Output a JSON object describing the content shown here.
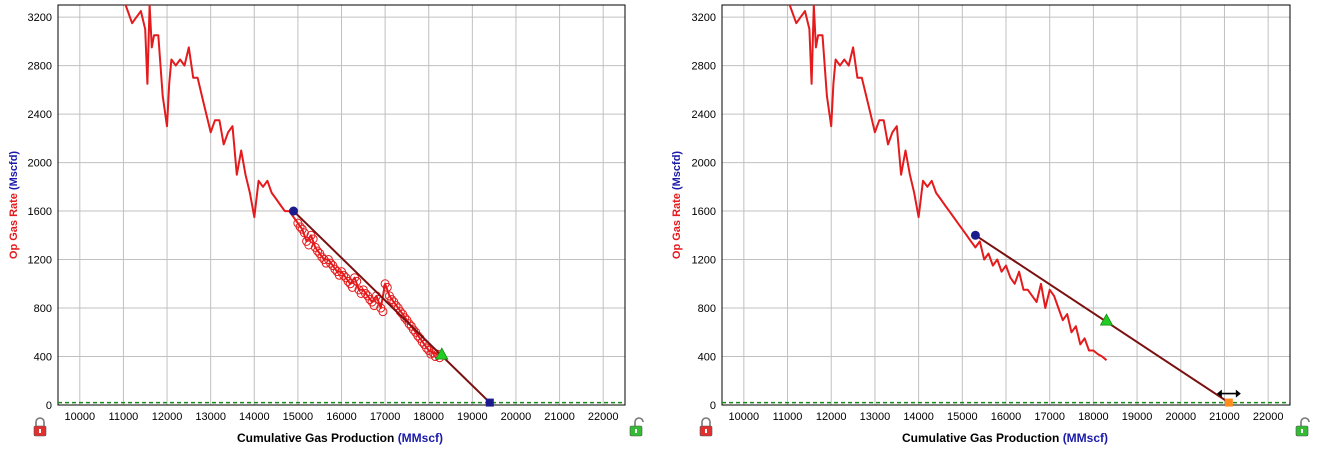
{
  "colors": {
    "data_line": "#e41a1c",
    "fit_line": "#7a1010",
    "grid": "#c0c0c0",
    "frame": "#000000",
    "y_label": "#e41a1c",
    "y_unit": "#1a1aaa",
    "x_unit": "#1a1aaa",
    "marker_start": "#1b1b8f",
    "marker_end_triangle": "#22cc22",
    "end_point_left": "#1b1b8f",
    "end_point_right": "#ff8c1a",
    "threshold": "#1a8a1a",
    "lock_red": "#e03030",
    "lock_green": "#33bb33"
  },
  "icons": [
    "lock-red-icon",
    "lock-green-icon",
    "double-arrow-icon"
  ],
  "chart_data": [
    {
      "type": "line",
      "xlabel": "Cumulative Gas Production",
      "xunit": "(MMscf)",
      "ylabel": "Op Gas Rate",
      "yunit": "(Mscfd)",
      "xlim": [
        9500,
        22500
      ],
      "ylim": [
        0,
        3300
      ],
      "xticks": [
        "10000",
        "11000",
        "12000",
        "13000",
        "14000",
        "15000",
        "16000",
        "17000",
        "18000",
        "19000",
        "20000",
        "21000",
        "22000"
      ],
      "yticks": [
        "0",
        "400",
        "800",
        "1200",
        "1600",
        "2000",
        "2400",
        "2800",
        "3200"
      ],
      "grid": true,
      "series": [
        {
          "x": [
            11000,
            11100,
            11200,
            11300,
            11400,
            11500,
            11550,
            11600,
            11650,
            11700,
            11800,
            11900,
            12000,
            12050,
            12100,
            12200,
            12300,
            12400,
            12500,
            12600,
            12700,
            12800,
            12900,
            13000,
            13100,
            13200,
            13300,
            13400,
            13500,
            13600,
            13700,
            13800,
            13900,
            14000,
            14100,
            14200,
            14300,
            14400,
            14500,
            14600,
            14700,
            14800,
            14900,
            15000,
            15100,
            15200,
            15300,
            15400,
            15500,
            15600,
            15700,
            15800,
            15900,
            16000,
            16100,
            16200,
            16300,
            16400,
            16500,
            16600,
            16700,
            16800,
            16900,
            17000,
            17100,
            17200,
            17300,
            17400,
            17500,
            17600,
            17700,
            17800,
            17900,
            18000,
            18100,
            18200,
            18300
          ],
          "y": [
            3350,
            3250,
            3150,
            3200,
            3250,
            3100,
            2650,
            3300,
            2950,
            3050,
            3050,
            2550,
            2300,
            2650,
            2850,
            2800,
            2850,
            2800,
            2950,
            2700,
            2700,
            2550,
            2400,
            2250,
            2350,
            2350,
            2150,
            2250,
            2300,
            1900,
            2100,
            1900,
            1750,
            1550,
            1850,
            1800,
            1850,
            1750,
            1700,
            1650,
            1600,
            1600,
            1550,
            1500,
            1450,
            1350,
            1400,
            1300,
            1250,
            1200,
            1200,
            1150,
            1100,
            1100,
            1050,
            1000,
            1050,
            950,
            950,
            900,
            850,
            900,
            800,
            1000,
            900,
            850,
            800,
            750,
            700,
            650,
            600,
            550,
            500,
            450,
            430,
            420,
            420
          ]
        },
        {
          "x": [
            14900,
            19400
          ],
          "y": [
            1600,
            20
          ]
        }
      ],
      "markers": {
        "start": [
          14900,
          1600
        ],
        "triangle": [
          18300,
          420
        ],
        "end": [
          19400,
          20
        ]
      },
      "circled_range": [
        15000,
        18200
      ],
      "threshold": 20
    },
    {
      "type": "line",
      "xlabel": "Cumulative Gas Production",
      "xunit": "(MMscf)",
      "ylabel": "Op Gas Rate",
      "yunit": "(Mscfd)",
      "xlim": [
        9500,
        22500
      ],
      "ylim": [
        0,
        3300
      ],
      "xticks": [
        "10000",
        "11000",
        "12000",
        "13000",
        "14000",
        "15000",
        "16000",
        "17000",
        "18000",
        "19000",
        "20000",
        "21000",
        "22000"
      ],
      "yticks": [
        "0",
        "400",
        "800",
        "1200",
        "1600",
        "2000",
        "2400",
        "2800",
        "3200"
      ],
      "grid": true,
      "series": [
        {
          "x": [
            11000,
            11100,
            11200,
            11300,
            11400,
            11500,
            11550,
            11600,
            11650,
            11700,
            11800,
            11900,
            12000,
            12050,
            12100,
            12200,
            12300,
            12400,
            12500,
            12600,
            12700,
            12800,
            12900,
            13000,
            13100,
            13200,
            13300,
            13400,
            13500,
            13600,
            13700,
            13800,
            13900,
            14000,
            14100,
            14200,
            14300,
            14400,
            14500,
            14600,
            14700,
            14800,
            14900,
            15000,
            15100,
            15200,
            15300,
            15400,
            15500,
            15600,
            15700,
            15800,
            15900,
            16000,
            16100,
            16200,
            16300,
            16400,
            16500,
            16600,
            16700,
            16800,
            16900,
            17000,
            17100,
            17200,
            17300,
            17400,
            17500,
            17600,
            17700,
            17800,
            17900,
            18000,
            18100,
            18200,
            18300
          ],
          "y": [
            3350,
            3250,
            3150,
            3200,
            3250,
            3100,
            2650,
            3300,
            2950,
            3050,
            3050,
            2550,
            2300,
            2650,
            2850,
            2800,
            2850,
            2800,
            2950,
            2700,
            2700,
            2550,
            2400,
            2250,
            2350,
            2350,
            2150,
            2250,
            2300,
            1900,
            2100,
            1900,
            1750,
            1550,
            1850,
            1800,
            1850,
            1750,
            1700,
            1650,
            1600,
            1550,
            1500,
            1450,
            1400,
            1350,
            1300,
            1350,
            1200,
            1250,
            1150,
            1200,
            1100,
            1150,
            1050,
            1000,
            1100,
            950,
            950,
            900,
            850,
            1000,
            800,
            950,
            900,
            800,
            700,
            750,
            600,
            650,
            500,
            550,
            450,
            450,
            420,
            400,
            370
          ]
        },
        {
          "x": [
            15300,
            21100
          ],
          "y": [
            1400,
            20
          ]
        }
      ],
      "markers": {
        "start": [
          15300,
          1400
        ],
        "triangle": [
          18300,
          700
        ],
        "end": [
          21100,
          20
        ]
      },
      "threshold": 20
    }
  ]
}
